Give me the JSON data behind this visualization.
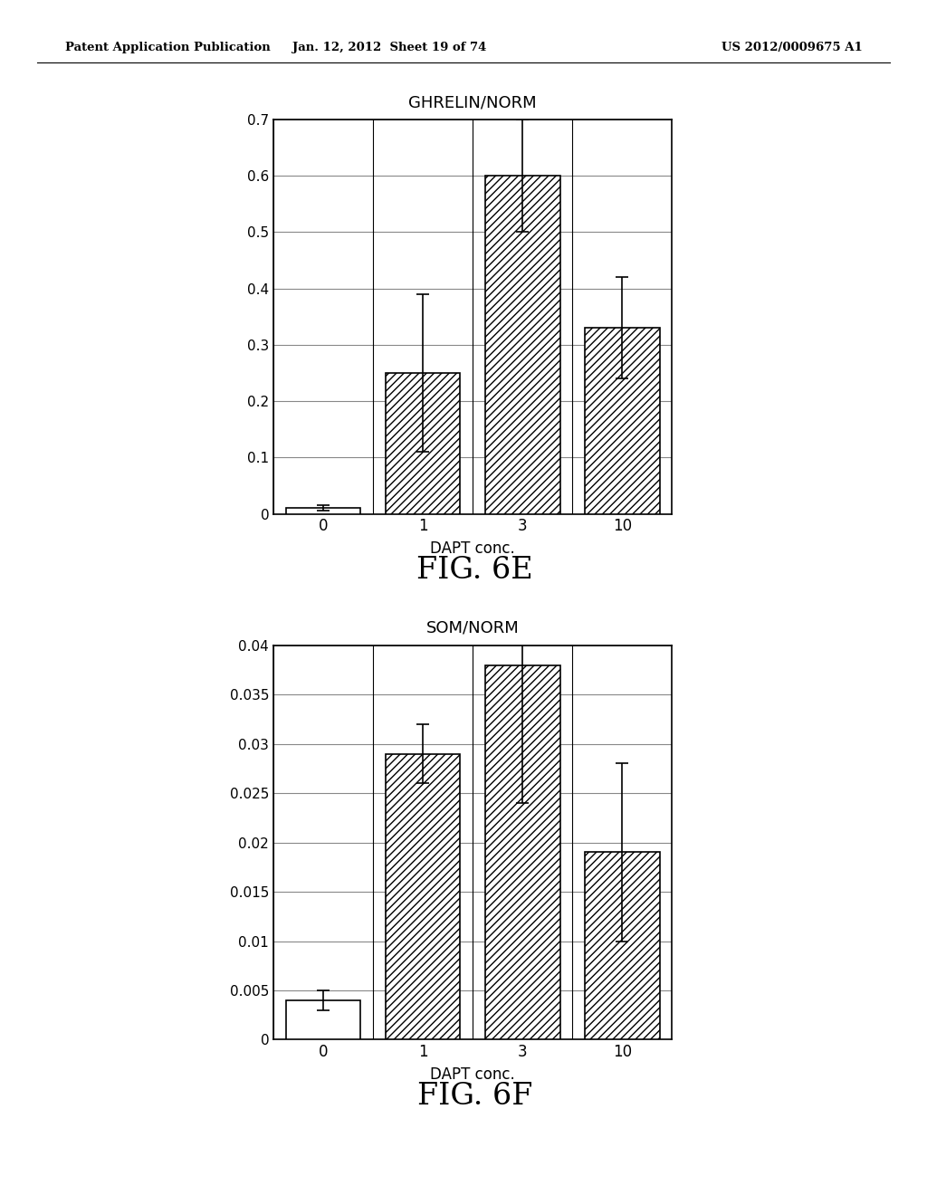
{
  "fig6e": {
    "title": "GHRELIN/NORM",
    "xlabel": "DAPT conc.",
    "categories": [
      "0",
      "1",
      "3",
      "10"
    ],
    "values": [
      0.01,
      0.25,
      0.6,
      0.33
    ],
    "errors": [
      0.005,
      0.14,
      0.1,
      0.09
    ],
    "ylim": [
      0,
      0.7
    ],
    "yticks": [
      0,
      0.1,
      0.2,
      0.3,
      0.4,
      0.5,
      0.6,
      0.7
    ],
    "fig_label": "FIG. 6E"
  },
  "fig6f": {
    "title": "SOM/NORM",
    "xlabel": "DAPT conc.",
    "categories": [
      "0",
      "1",
      "3",
      "10"
    ],
    "values": [
      0.004,
      0.029,
      0.038,
      0.019
    ],
    "errors": [
      0.001,
      0.003,
      0.014,
      0.009
    ],
    "ylim": [
      0,
      0.04
    ],
    "yticks": [
      0,
      0.005,
      0.01,
      0.015,
      0.02,
      0.025,
      0.03,
      0.035,
      0.04
    ],
    "fig_label": "FIG. 6F"
  },
  "header_left": "Patent Application Publication",
  "header_center": "Jan. 12, 2012  Sheet 19 of 74",
  "header_right": "US 2012/0009675 A1",
  "background_color": "#ffffff",
  "bar_hatch": "////",
  "bar_facecolor": "#ffffff",
  "bar_edgecolor": "#000000",
  "bar0_facecolor": "#ffffff",
  "bar0_hatch": "",
  "grid_color": "#888888",
  "grid_linestyle": "-",
  "bar_width": 0.75
}
